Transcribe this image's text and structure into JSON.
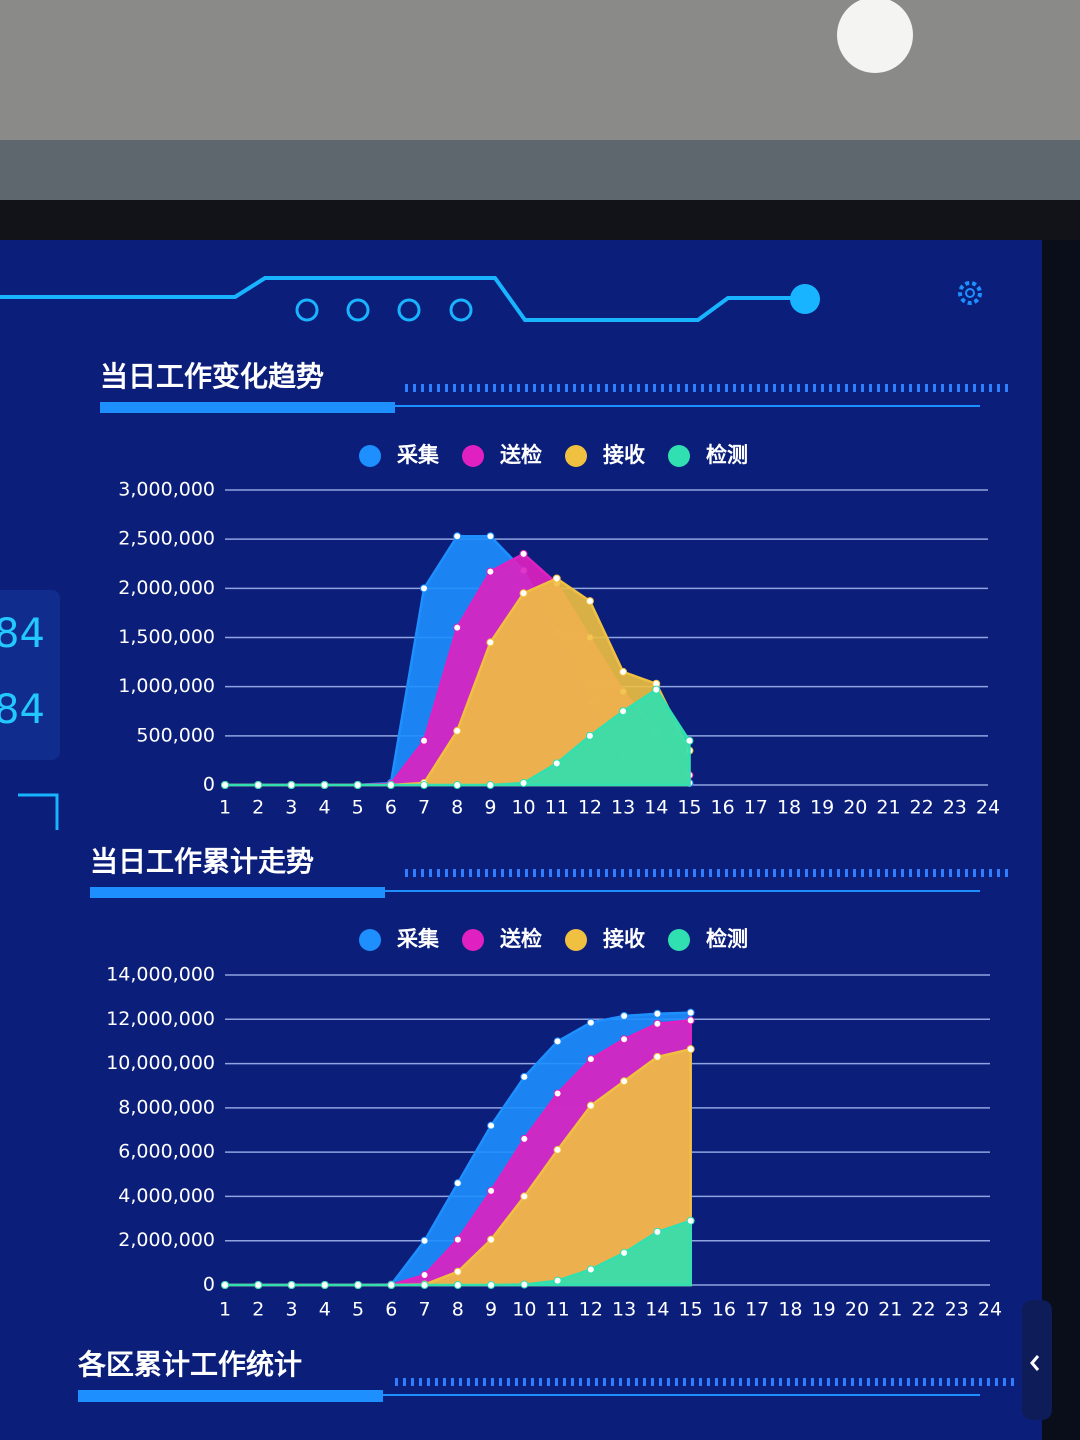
{
  "side_values": [
    "84",
    "84"
  ],
  "footer_section": {
    "title": "各区累计工作统计"
  },
  "chart_data": [
    {
      "type": "area",
      "title": "当日工作变化趋势",
      "categories": [
        "1",
        "2",
        "3",
        "4",
        "5",
        "6",
        "7",
        "8",
        "9",
        "10",
        "11",
        "12",
        "13",
        "14",
        "15",
        "16",
        "17",
        "18",
        "19",
        "20",
        "21",
        "22",
        "23",
        "24"
      ],
      "ylim": [
        0,
        3000000
      ],
      "yticks": [
        0,
        {
          "value": 500000,
          "label": "500,000"
        },
        {
          "value": 1000000,
          "label": "1,000,000"
        },
        {
          "value": 1500000,
          "label": "1,500,000"
        },
        {
          "value": 2000000,
          "label": "2,000,000"
        },
        {
          "value": 2500000,
          "label": "2,500,000"
        },
        {
          "value": 3000000,
          "label": "3,000,000"
        }
      ],
      "grid": true,
      "legend": "top",
      "series": [
        {
          "name": "采集",
          "color": "#1e8fff",
          "values": [
            0,
            0,
            0,
            0,
            0,
            20000,
            2000000,
            2530000,
            2530000,
            2180000,
            1560000,
            850000,
            300000,
            100000,
            20000,
            null,
            null,
            null,
            null,
            null,
            null,
            null,
            null,
            null
          ]
        },
        {
          "name": "送检",
          "color": "#e020c0",
          "values": [
            0,
            0,
            0,
            0,
            0,
            10000,
            450000,
            1600000,
            2170000,
            2350000,
            2050000,
            1500000,
            950000,
            550000,
            100000,
            null,
            null,
            null,
            null,
            null,
            null,
            null,
            null,
            null
          ]
        },
        {
          "name": "接收",
          "color": "#f0c040",
          "values": [
            0,
            0,
            0,
            0,
            0,
            0,
            20000,
            550000,
            1450000,
            1950000,
            2100000,
            1870000,
            1150000,
            1030000,
            350000,
            null,
            null,
            null,
            null,
            null,
            null,
            null,
            null,
            null
          ]
        },
        {
          "name": "检测",
          "color": "#30e0b0",
          "values": [
            0,
            0,
            0,
            0,
            0,
            0,
            0,
            0,
            0,
            20000,
            220000,
            500000,
            750000,
            970000,
            450000,
            null,
            null,
            null,
            null,
            null,
            null,
            null,
            null,
            null
          ]
        }
      ]
    },
    {
      "type": "area",
      "title": "当日工作累计走势",
      "categories": [
        "1",
        "2",
        "3",
        "4",
        "5",
        "6",
        "7",
        "8",
        "9",
        "10",
        "11",
        "12",
        "13",
        "14",
        "15",
        "16",
        "17",
        "18",
        "19",
        "20",
        "21",
        "22",
        "23",
        "24"
      ],
      "ylim": [
        0,
        14000000
      ],
      "yticks": [
        0,
        {
          "value": 2000000,
          "label": "2,000,000"
        },
        {
          "value": 4000000,
          "label": "4,000,000"
        },
        {
          "value": 6000000,
          "label": "6,000,000"
        },
        {
          "value": 8000000,
          "label": "8,000,000"
        },
        {
          "value": 10000000,
          "label": "10,000,000"
        },
        {
          "value": 12000000,
          "label": "12,000,000"
        },
        {
          "value": 14000000,
          "label": "14,000,000"
        }
      ],
      "grid": true,
      "legend": "top",
      "series": [
        {
          "name": "采集",
          "color": "#1e8fff",
          "values": [
            0,
            0,
            0,
            0,
            0,
            20000,
            2000000,
            4600000,
            7200000,
            9400000,
            11000000,
            11850000,
            12150000,
            12250000,
            12300000,
            null,
            null,
            null,
            null,
            null,
            null,
            null,
            null,
            null
          ]
        },
        {
          "name": "送检",
          "color": "#e020c0",
          "values": [
            0,
            0,
            0,
            0,
            0,
            10000,
            450000,
            2050000,
            4250000,
            6600000,
            8650000,
            10200000,
            11100000,
            11800000,
            11950000,
            null,
            null,
            null,
            null,
            null,
            null,
            null,
            null,
            null
          ]
        },
        {
          "name": "接收",
          "color": "#f0c040",
          "values": [
            0,
            0,
            0,
            0,
            0,
            0,
            20000,
            600000,
            2050000,
            4000000,
            6100000,
            8100000,
            9200000,
            10300000,
            10650000,
            null,
            null,
            null,
            null,
            null,
            null,
            null,
            null,
            null
          ]
        },
        {
          "name": "检测",
          "color": "#30e0b0",
          "values": [
            0,
            0,
            0,
            0,
            0,
            0,
            0,
            0,
            0,
            20000,
            200000,
            700000,
            1450000,
            2400000,
            2900000,
            null,
            null,
            null,
            null,
            null,
            null,
            null,
            null,
            null
          ]
        }
      ]
    }
  ]
}
